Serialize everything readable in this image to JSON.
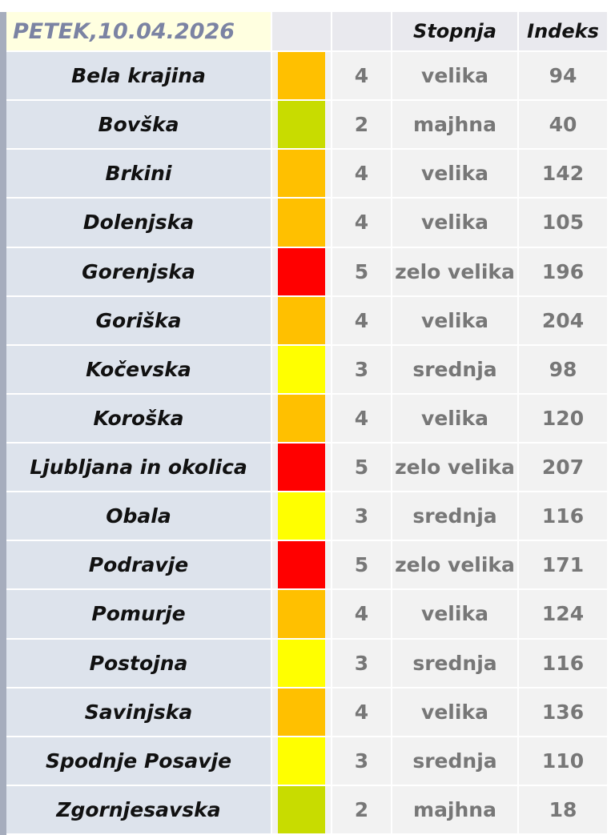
{
  "table": {
    "header": [
      "PETEK,10.04.2026",
      "Stopnja",
      "Indeks"
    ],
    "rows": [
      {
        "region": "Bela krajina",
        "color": "#ffc000",
        "level": 4,
        "stopnja": "velika",
        "indeks": 94
      },
      {
        "region": "Bovška",
        "color": "#c8dc00",
        "level": 2,
        "stopnja": "majhna",
        "indeks": 40
      },
      {
        "region": "Brkini",
        "color": "#ffc000",
        "level": 4,
        "stopnja": "velika",
        "indeks": 142
      },
      {
        "region": "Dolenjska",
        "color": "#ffc000",
        "level": 4,
        "stopnja": "velika",
        "indeks": 105
      },
      {
        "region": "Gorenjska",
        "color": "#ff0000",
        "level": 5,
        "stopnja": "zelo velika",
        "indeks": 196
      },
      {
        "region": "Goriška",
        "color": "#ffc000",
        "level": 4,
        "stopnja": "velika",
        "indeks": 204
      },
      {
        "region": "Kočevska",
        "color": "#ffff00",
        "level": 3,
        "stopnja": "srednja",
        "indeks": 98
      },
      {
        "region": "Koroška",
        "color": "#ffc000",
        "level": 4,
        "stopnja": "velika",
        "indeks": 120
      },
      {
        "region": "Ljubljana in okolica",
        "color": "#ff0000",
        "level": 5,
        "stopnja": "zelo velika",
        "indeks": 207
      },
      {
        "region": "Obala",
        "color": "#ffff00",
        "level": 3,
        "stopnja": "srednja",
        "indeks": 116
      },
      {
        "region": "Podravje",
        "color": "#ff0000",
        "level": 5,
        "stopnja": "zelo velika",
        "indeks": 171
      },
      {
        "region": "Pomurje",
        "color": "#ffc000",
        "level": 4,
        "stopnja": "velika",
        "indeks": 124
      },
      {
        "region": "Postojna",
        "color": "#ffff00",
        "level": 3,
        "stopnja": "srednja",
        "indeks": 116
      },
      {
        "region": "Savinjska",
        "color": "#ffc000",
        "level": 4,
        "stopnja": "velika",
        "indeks": 136
      },
      {
        "region": "Spodnje Posavje",
        "color": "#ffff00",
        "level": 3,
        "stopnja": "srednja",
        "indeks": 110
      },
      {
        "region": "Zgornjesavska",
        "color": "#c8dc00",
        "level": 2,
        "stopnja": "majhna",
        "indeks": 18
      }
    ]
  }
}
